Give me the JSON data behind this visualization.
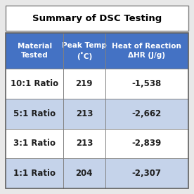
{
  "title": "Summary of DSC Testing",
  "col_headers": [
    "Material\nTested",
    "Peak Temp\n(˚C)",
    "Heat of Reaction\nΔHR (J/g)"
  ],
  "rows": [
    [
      "10:1 Ratio",
      "219",
      "-1,538"
    ],
    [
      "5:1 Ratio",
      "213",
      "-2,662"
    ],
    [
      "3:1 Ratio",
      "213",
      "-2,839"
    ],
    [
      "1:1 Ratio",
      "204",
      "-2,307"
    ]
  ],
  "header_bg": "#4472C4",
  "header_text": "#FFFFFF",
  "row_bg_alt1": "#FFFFFF",
  "row_bg_alt2": "#C5D3EA",
  "cell_text": "#1F1F1F",
  "title_text": "#000000",
  "border_color": "#808080",
  "outer_border_color": "#606060",
  "title_border_color": "#808080",
  "title_fontsize": 9.5,
  "header_fontsize": 7.5,
  "cell_fontsize": 8.5,
  "background_color": "#E8E8E8"
}
